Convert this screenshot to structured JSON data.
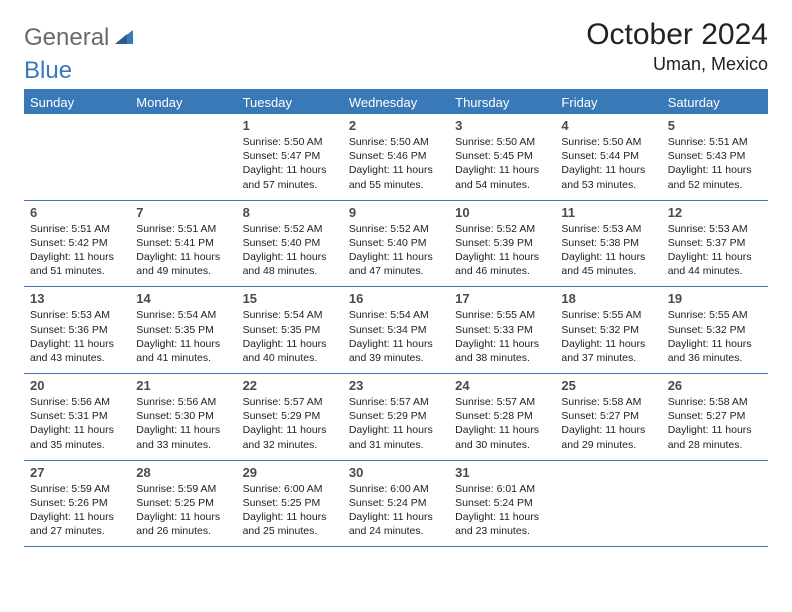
{
  "brand": {
    "part1": "General",
    "part2": "Blue"
  },
  "title": "October 2024",
  "location": "Uman, Mexico",
  "colors": {
    "brand_blue": "#3a79b7",
    "brand_gray": "#6a6a6a",
    "text": "#222222",
    "bg": "#ffffff"
  },
  "weekdays": [
    "Sunday",
    "Monday",
    "Tuesday",
    "Wednesday",
    "Thursday",
    "Friday",
    "Saturday"
  ],
  "weeks": [
    [
      null,
      null,
      {
        "n": "1",
        "sr": "5:50 AM",
        "ss": "5:47 PM",
        "dl": "11 hours and 57 minutes."
      },
      {
        "n": "2",
        "sr": "5:50 AM",
        "ss": "5:46 PM",
        "dl": "11 hours and 55 minutes."
      },
      {
        "n": "3",
        "sr": "5:50 AM",
        "ss": "5:45 PM",
        "dl": "11 hours and 54 minutes."
      },
      {
        "n": "4",
        "sr": "5:50 AM",
        "ss": "5:44 PM",
        "dl": "11 hours and 53 minutes."
      },
      {
        "n": "5",
        "sr": "5:51 AM",
        "ss": "5:43 PM",
        "dl": "11 hours and 52 minutes."
      }
    ],
    [
      {
        "n": "6",
        "sr": "5:51 AM",
        "ss": "5:42 PM",
        "dl": "11 hours and 51 minutes."
      },
      {
        "n": "7",
        "sr": "5:51 AM",
        "ss": "5:41 PM",
        "dl": "11 hours and 49 minutes."
      },
      {
        "n": "8",
        "sr": "5:52 AM",
        "ss": "5:40 PM",
        "dl": "11 hours and 48 minutes."
      },
      {
        "n": "9",
        "sr": "5:52 AM",
        "ss": "5:40 PM",
        "dl": "11 hours and 47 minutes."
      },
      {
        "n": "10",
        "sr": "5:52 AM",
        "ss": "5:39 PM",
        "dl": "11 hours and 46 minutes."
      },
      {
        "n": "11",
        "sr": "5:53 AM",
        "ss": "5:38 PM",
        "dl": "11 hours and 45 minutes."
      },
      {
        "n": "12",
        "sr": "5:53 AM",
        "ss": "5:37 PM",
        "dl": "11 hours and 44 minutes."
      }
    ],
    [
      {
        "n": "13",
        "sr": "5:53 AM",
        "ss": "5:36 PM",
        "dl": "11 hours and 43 minutes."
      },
      {
        "n": "14",
        "sr": "5:54 AM",
        "ss": "5:35 PM",
        "dl": "11 hours and 41 minutes."
      },
      {
        "n": "15",
        "sr": "5:54 AM",
        "ss": "5:35 PM",
        "dl": "11 hours and 40 minutes."
      },
      {
        "n": "16",
        "sr": "5:54 AM",
        "ss": "5:34 PM",
        "dl": "11 hours and 39 minutes."
      },
      {
        "n": "17",
        "sr": "5:55 AM",
        "ss": "5:33 PM",
        "dl": "11 hours and 38 minutes."
      },
      {
        "n": "18",
        "sr": "5:55 AM",
        "ss": "5:32 PM",
        "dl": "11 hours and 37 minutes."
      },
      {
        "n": "19",
        "sr": "5:55 AM",
        "ss": "5:32 PM",
        "dl": "11 hours and 36 minutes."
      }
    ],
    [
      {
        "n": "20",
        "sr": "5:56 AM",
        "ss": "5:31 PM",
        "dl": "11 hours and 35 minutes."
      },
      {
        "n": "21",
        "sr": "5:56 AM",
        "ss": "5:30 PM",
        "dl": "11 hours and 33 minutes."
      },
      {
        "n": "22",
        "sr": "5:57 AM",
        "ss": "5:29 PM",
        "dl": "11 hours and 32 minutes."
      },
      {
        "n": "23",
        "sr": "5:57 AM",
        "ss": "5:29 PM",
        "dl": "11 hours and 31 minutes."
      },
      {
        "n": "24",
        "sr": "5:57 AM",
        "ss": "5:28 PM",
        "dl": "11 hours and 30 minutes."
      },
      {
        "n": "25",
        "sr": "5:58 AM",
        "ss": "5:27 PM",
        "dl": "11 hours and 29 minutes."
      },
      {
        "n": "26",
        "sr": "5:58 AM",
        "ss": "5:27 PM",
        "dl": "11 hours and 28 minutes."
      }
    ],
    [
      {
        "n": "27",
        "sr": "5:59 AM",
        "ss": "5:26 PM",
        "dl": "11 hours and 27 minutes."
      },
      {
        "n": "28",
        "sr": "5:59 AM",
        "ss": "5:25 PM",
        "dl": "11 hours and 26 minutes."
      },
      {
        "n": "29",
        "sr": "6:00 AM",
        "ss": "5:25 PM",
        "dl": "11 hours and 25 minutes."
      },
      {
        "n": "30",
        "sr": "6:00 AM",
        "ss": "5:24 PM",
        "dl": "11 hours and 24 minutes."
      },
      {
        "n": "31",
        "sr": "6:01 AM",
        "ss": "5:24 PM",
        "dl": "11 hours and 23 minutes."
      },
      null,
      null
    ]
  ],
  "labels": {
    "sunrise": "Sunrise:",
    "sunset": "Sunset:",
    "daylight": "Daylight:"
  }
}
